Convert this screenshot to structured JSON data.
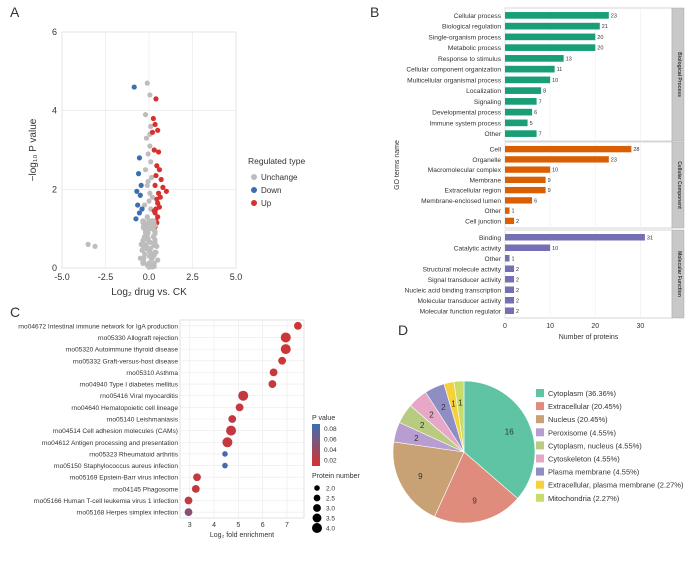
{
  "panel_labels": {
    "a": "A",
    "b": "B",
    "c": "C",
    "d": "D"
  },
  "chart_data": [
    {
      "id": "A",
      "type": "scatter",
      "title": "",
      "xlabel": "Log₂ drug vs. CK",
      "ylabel": "−log₁₀ P value",
      "xlim": [
        -5,
        5
      ],
      "ylim": [
        0,
        6
      ],
      "xticks": [
        "-5.0",
        "-2.5",
        "0.0",
        "2.5",
        "5.0"
      ],
      "yticks": [
        "0",
        "2",
        "4",
        "6"
      ],
      "grid": true,
      "legend_title": "Regulated type",
      "legend_position": "right",
      "series": [
        {
          "name": "Unchange",
          "color": "#bdbdbd",
          "points": [
            [
              -3.5,
              0.6
            ],
            [
              -3.1,
              0.55
            ],
            [
              -0.1,
              4.7
            ],
            [
              0.05,
              4.4
            ],
            [
              -0.2,
              3.9
            ],
            [
              0.1,
              3.6
            ],
            [
              -0.15,
              3.3
            ],
            [
              0.05,
              3.1
            ],
            [
              -0.05,
              2.9
            ],
            [
              0.1,
              2.7
            ],
            [
              -0.2,
              2.5
            ],
            [
              0.15,
              2.3
            ],
            [
              -0.1,
              2.1
            ],
            [
              0.05,
              1.9
            ],
            [
              0.2,
              1.8
            ],
            [
              -0.25,
              1.6
            ],
            [
              0.1,
              1.5
            ],
            [
              -0.1,
              1.3
            ],
            [
              0.2,
              1.2
            ],
            [
              -0.3,
              1.1
            ],
            [
              0.3,
              1.0
            ],
            [
              -0.2,
              0.9
            ],
            [
              0.25,
              0.8
            ],
            [
              -0.35,
              0.7
            ],
            [
              0.35,
              0.6
            ],
            [
              -0.15,
              0.55
            ],
            [
              0.1,
              0.5
            ],
            [
              -0.4,
              0.45
            ],
            [
              0.4,
              0.4
            ],
            [
              -0.25,
              0.35
            ],
            [
              0.2,
              0.3
            ],
            [
              -0.5,
              0.25
            ],
            [
              0.5,
              0.2
            ],
            [
              -0.3,
              0.15
            ],
            [
              0.3,
              0.12
            ],
            [
              -0.1,
              0.08
            ],
            [
              0.15,
              0.05
            ],
            [
              0.0,
              0.02
            ],
            [
              -0.45,
              0.6
            ],
            [
              0.45,
              0.55
            ],
            [
              0.05,
              3.4
            ],
            [
              -0.05,
              2.2
            ],
            [
              0.0,
              1.7
            ],
            [
              0.1,
              1.0
            ],
            [
              -0.05,
              0.75
            ],
            [
              0.02,
              0.3
            ]
          ]
        },
        {
          "name": "Down",
          "color": "#3b6fb0",
          "points": [
            [
              -0.85,
              4.6
            ],
            [
              -0.55,
              2.8
            ],
            [
              -0.6,
              2.4
            ],
            [
              -0.45,
              2.1
            ],
            [
              -0.7,
              1.95
            ],
            [
              -0.5,
              1.85
            ],
            [
              -0.65,
              1.6
            ],
            [
              -0.4,
              1.5
            ],
            [
              -0.55,
              1.4
            ],
            [
              -0.75,
              1.25
            ]
          ]
        },
        {
          "name": "Up",
          "color": "#d7312f",
          "points": [
            [
              0.4,
              4.3
            ],
            [
              0.25,
              3.8
            ],
            [
              0.35,
              3.65
            ],
            [
              0.5,
              3.5
            ],
            [
              0.2,
              3.45
            ],
            [
              0.3,
              3.0
            ],
            [
              0.55,
              2.95
            ],
            [
              0.45,
              2.6
            ],
            [
              0.6,
              2.5
            ],
            [
              0.4,
              2.35
            ],
            [
              0.7,
              2.25
            ],
            [
              0.35,
              2.1
            ],
            [
              0.8,
              2.05
            ],
            [
              1.0,
              1.95
            ],
            [
              0.55,
              1.9
            ],
            [
              0.65,
              1.8
            ],
            [
              0.45,
              1.75
            ],
            [
              0.5,
              1.65
            ],
            [
              0.6,
              1.55
            ],
            [
              0.4,
              1.5
            ],
            [
              0.3,
              1.45
            ],
            [
              0.35,
              1.4
            ],
            [
              0.5,
              1.3
            ],
            [
              0.4,
              1.2
            ],
            [
              0.45,
              1.15
            ],
            [
              0.35,
              1.05
            ]
          ]
        }
      ]
    },
    {
      "id": "B",
      "type": "bar",
      "orientation": "horizontal",
      "xlabel": "Number of proteins",
      "ylabel": "GO terms name",
      "xlim": [
        0,
        37
      ],
      "xticks": [
        "0",
        "10",
        "20",
        "30"
      ],
      "grid": true,
      "groups": [
        {
          "name": "Biological Process",
          "color": "#1a9e77",
          "categories": [
            "Cellular process",
            "Biological regulation",
            "Single-organism process",
            "Metabolic process",
            "Response to stimulus",
            "Cellular component organization",
            "Multicellular organismal process",
            "Localization",
            "Signaling",
            "Developmental process",
            "Immune system process",
            "Other"
          ],
          "values": [
            23,
            21,
            20,
            20,
            13,
            11,
            10,
            8,
            7,
            6,
            5,
            7
          ]
        },
        {
          "name": "Cellular Component",
          "color": "#d95f02",
          "categories": [
            "Cell",
            "Organelle",
            "Macromolecular complex",
            "Membrane",
            "Extracellular region",
            "Membrane-enclosed lumen",
            "Other",
            "Cell junction"
          ],
          "values": [
            28,
            23,
            10,
            9,
            9,
            6,
            1,
            2
          ]
        },
        {
          "name": "Molecular Function",
          "color": "#7570b3",
          "categories": [
            "Binding",
            "Catalytic activity",
            "Other",
            "Structural molecule activity",
            "Signal transducer activity",
            "Nucleic acid binding transcription",
            "Molecular transducer activity",
            "Molecular function regulator"
          ],
          "values": [
            31,
            10,
            1,
            2,
            2,
            2,
            2,
            2
          ]
        }
      ]
    },
    {
      "id": "C",
      "type": "scatter",
      "xlabel": "Log₂ fold enrichment",
      "ylabel": "",
      "xlim": [
        2.6,
        7.7
      ],
      "xticks": [
        "3",
        "4",
        "5",
        "6",
        "7"
      ],
      "grid": true,
      "color_legend_title": "P value",
      "color_scale": {
        "low_color": "#d7312f",
        "high_color": "#3b6fb0",
        "ticks": [
          "0.08",
          "0.06",
          "0.04",
          "0.02"
        ],
        "min": 0.01,
        "max": 0.09
      },
      "size_legend_title": "Protein number",
      "size_ticks": [
        "2.0",
        "2.5",
        "3.0",
        "3.5",
        "4.0"
      ],
      "categories": [
        "rno04672 Intestinal immune network for IgA production",
        "rno05330 Allograft rejection",
        "rno05320 Autoimmune thyroid disease",
        "rno05332 Graft-versus-host disease",
        "rno05310 Asthma",
        "rno04940 Type I diabetes mellitus",
        "rno05416 Viral myocarditis",
        "rno04640 Hematopoietic cell lineage",
        "rno05140 Leishmaniasis",
        "rno04514 Cell adhesion molecules (CAMs)",
        "rno04612 Antigen processing and presentation",
        "rno05323 Rheumatoid arthritis",
        "rno05150 Staphylococcus aureus infection",
        "rno05169 Epstein-Barr virus infection",
        "rno04145 Phagosome",
        "rno05166 Human T-cell leukemia virus 1 infection",
        "rno05168 Herpes simplex infection"
      ],
      "x": [
        7.45,
        6.95,
        6.95,
        6.8,
        6.45,
        6.4,
        5.2,
        5.05,
        4.75,
        4.7,
        4.55,
        4.45,
        4.45,
        3.3,
        3.25,
        2.95,
        2.95
      ],
      "pvalue": [
        0.015,
        0.015,
        0.015,
        0.015,
        0.02,
        0.02,
        0.02,
        0.02,
        0.02,
        0.02,
        0.02,
        0.085,
        0.085,
        0.02,
        0.02,
        0.02,
        0.05
      ],
      "size": [
        3,
        4,
        4,
        3,
        3,
        3,
        4,
        3,
        3,
        4,
        4,
        2,
        2,
        3,
        3,
        3,
        3
      ]
    },
    {
      "id": "D",
      "type": "pie",
      "categories": [
        "Cytoplasm (36.36%)",
        "Extracellular (20.45%)",
        "Nucleus (20.45%)",
        "Peroxisome (4.55%)",
        "Cytoplasm, nucleus (4.55%)",
        "Cytoskeleton (4.55%)",
        "Plasma membrane (4.55%)",
        "Extracellular, plasma membrane (2.27%)",
        "Mitochondria (2.27%)"
      ],
      "values": [
        16,
        9,
        9,
        2,
        2,
        2,
        2,
        1,
        1
      ],
      "colors": [
        "#5fc4a3",
        "#e08c7c",
        "#c8a274",
        "#b89ed0",
        "#b8cb80",
        "#e6a8c6",
        "#8e8ec4",
        "#f5d23b",
        "#c7dc6a"
      ],
      "legend_position": "right"
    }
  ]
}
